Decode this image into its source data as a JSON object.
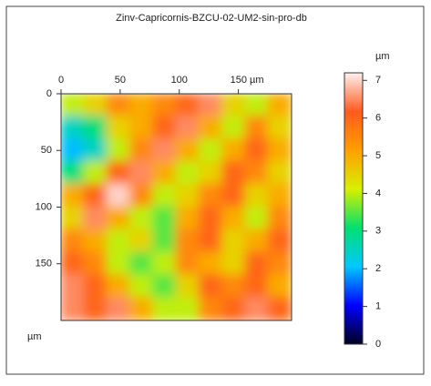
{
  "chart_data": {
    "type": "heatmap",
    "title": "Zinv-Capricornis-BZCU-02-UM2-sin-pro-db",
    "x_label": "µm",
    "colorbar_label": "µm",
    "xlim": [
      0,
      195
    ],
    "ylim": [
      0,
      200
    ],
    "xticks": [
      0,
      50,
      100,
      {
        "value": 150,
        "label": "150 µm"
      }
    ],
    "yticks": [
      0,
      50,
      100,
      150
    ],
    "zlim": [
      0,
      7.2
    ],
    "zticks": [
      0,
      1,
      2,
      3,
      4,
      5,
      6,
      7
    ],
    "colorscale": [
      "#000020",
      "#0000ff",
      "#00c8ff",
      "#00e070",
      "#d8f000",
      "#ffa000",
      "#ff5a1e",
      "#fff0f0"
    ],
    "z": [
      [
        4,
        4.5,
        5.5,
        5,
        5.5,
        6,
        6.5,
        4.5,
        4,
        5
      ],
      [
        2.5,
        3,
        4.5,
        5,
        6,
        6.5,
        5,
        4,
        5.5,
        4.5
      ],
      [
        2,
        2.5,
        4,
        5.5,
        6.5,
        5,
        4,
        5,
        6,
        5
      ],
      [
        3,
        4,
        6,
        6.5,
        5,
        4,
        4.5,
        6,
        5.5,
        4.5
      ],
      [
        5,
        6,
        7,
        5.5,
        4,
        4.5,
        5.5,
        6,
        4.5,
        5
      ],
      [
        4.5,
        6.5,
        5,
        4,
        3.5,
        5,
        6,
        5,
        4,
        5.5
      ],
      [
        5.5,
        5,
        4,
        4.5,
        3.5,
        5.5,
        6,
        4.5,
        5,
        6
      ],
      [
        6,
        5.5,
        4,
        3.5,
        4,
        5.5,
        5,
        4.5,
        6,
        5.5
      ],
      [
        6.5,
        6,
        5,
        4,
        3.5,
        4.5,
        6,
        5.5,
        6,
        5
      ],
      [
        6.5,
        6,
        6.5,
        5,
        4,
        4,
        5.5,
        6,
        6.5,
        6
      ]
    ]
  }
}
